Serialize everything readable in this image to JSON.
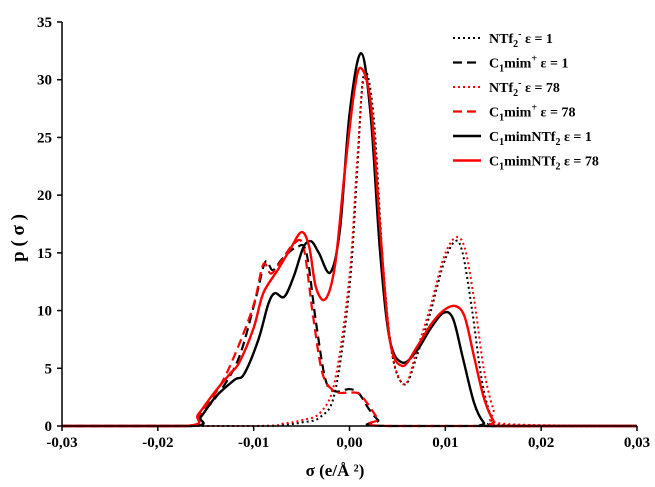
{
  "chart_data": {
    "type": "line",
    "title": "",
    "xlabel": "σ  (e/Å ²)",
    "ylabel": "p  ( σ )",
    "xlim": [
      -0.03,
      0.03
    ],
    "ylim": [
      0,
      35
    ],
    "x_ticks": [
      -0.03,
      -0.02,
      -0.01,
      0.0,
      0.01,
      0.02,
      0.03
    ],
    "x_tick_labels": [
      "-0,03",
      "-0,02",
      "-0,01",
      "0,00",
      "0,01",
      "0,02",
      "0,03"
    ],
    "y_ticks": [
      0,
      5,
      10,
      15,
      20,
      25,
      30,
      35
    ],
    "y_tick_labels": [
      "0",
      "5",
      "10",
      "15",
      "20",
      "25",
      "30",
      "35"
    ],
    "grid": false,
    "legend_position": "top-right",
    "series": [
      {
        "name": "NTf2⁻ ε = 1",
        "label_parts": {
          "base": "NTf",
          "sub": "2",
          "sup": "-",
          "suffix": "  ε = 1"
        },
        "color": "#000000",
        "dash": "dotted",
        "points": [
          [
            -0.03,
            0
          ],
          [
            -0.01,
            0
          ],
          [
            -0.007,
            0.1
          ],
          [
            -0.005,
            0.3
          ],
          [
            -0.003,
            0.8
          ],
          [
            -0.0015,
            3
          ],
          [
            0,
            12
          ],
          [
            0.0008,
            22
          ],
          [
            0.0015,
            30.5
          ],
          [
            0.0025,
            27
          ],
          [
            0.0035,
            14
          ],
          [
            0.0045,
            6
          ],
          [
            0.0058,
            3.6
          ],
          [
            0.007,
            6
          ],
          [
            0.0085,
            10
          ],
          [
            0.0098,
            14
          ],
          [
            0.011,
            16
          ],
          [
            0.0118,
            15
          ],
          [
            0.0128,
            10
          ],
          [
            0.0138,
            4
          ],
          [
            0.0148,
            0.8
          ],
          [
            0.0158,
            0.1
          ],
          [
            0.03,
            0
          ]
        ]
      },
      {
        "name": "C1mim⁺ ε = 1",
        "label_parts": {
          "base": "C",
          "sub": "1",
          "mid": "mim",
          "sup": "+",
          "suffix": "  ε = 1"
        },
        "color": "#000000",
        "dash": "dashed",
        "points": [
          [
            -0.03,
            0
          ],
          [
            -0.017,
            0
          ],
          [
            -0.0155,
            1
          ],
          [
            -0.0135,
            3
          ],
          [
            -0.0115,
            6
          ],
          [
            -0.0098,
            11
          ],
          [
            -0.0088,
            14.2
          ],
          [
            -0.008,
            13.5
          ],
          [
            -0.007,
            14.5
          ],
          [
            -0.0055,
            15.5
          ],
          [
            -0.0045,
            15
          ],
          [
            -0.0035,
            9
          ],
          [
            -0.0025,
            4
          ],
          [
            -0.0015,
            3
          ],
          [
            0,
            3.2
          ],
          [
            0.001,
            2.8
          ],
          [
            0.002,
            1.5
          ],
          [
            0.003,
            0.5
          ],
          [
            0.004,
            0
          ],
          [
            0.03,
            0
          ]
        ]
      },
      {
        "name": "NTf2⁻ ε = 78",
        "label_parts": {
          "base": "NTf",
          "sub": "2",
          "sup": "-",
          "suffix": "  ε = 78"
        },
        "color": "#ff0000",
        "dash": "dotted",
        "points": [
          [
            -0.03,
            0
          ],
          [
            -0.01,
            0
          ],
          [
            -0.007,
            0.2
          ],
          [
            -0.005,
            0.5
          ],
          [
            -0.003,
            1.2
          ],
          [
            -0.0015,
            4
          ],
          [
            0,
            13
          ],
          [
            0.0008,
            23
          ],
          [
            0.0015,
            30
          ],
          [
            0.0025,
            26
          ],
          [
            0.0035,
            13
          ],
          [
            0.0045,
            6
          ],
          [
            0.0058,
            3.6
          ],
          [
            0.007,
            6.5
          ],
          [
            0.0085,
            10.5
          ],
          [
            0.0098,
            14.5
          ],
          [
            0.011,
            16.3
          ],
          [
            0.012,
            15.5
          ],
          [
            0.013,
            11
          ],
          [
            0.014,
            5
          ],
          [
            0.015,
            1.5
          ],
          [
            0.016,
            0.2
          ],
          [
            0.03,
            0
          ]
        ]
      },
      {
        "name": "C1mim⁺ ε = 78",
        "label_parts": {
          "base": "C",
          "sub": "1",
          "mid": "mim",
          "sup": "+",
          "suffix": "  ε = 78"
        },
        "color": "#ff0000",
        "dash": "dashed",
        "points": [
          [
            -0.03,
            0
          ],
          [
            -0.017,
            0
          ],
          [
            -0.0155,
            1.2
          ],
          [
            -0.0135,
            3.5
          ],
          [
            -0.0118,
            6.5
          ],
          [
            -0.01,
            10.5
          ],
          [
            -0.009,
            14
          ],
          [
            -0.0082,
            13.2
          ],
          [
            -0.0072,
            14.2
          ],
          [
            -0.0058,
            15.8
          ],
          [
            -0.0048,
            15.5
          ],
          [
            -0.0038,
            9.5
          ],
          [
            -0.0028,
            4.5
          ],
          [
            -0.0015,
            3
          ],
          [
            0,
            2.9
          ],
          [
            0.001,
            2.8
          ],
          [
            0.002,
            1.8
          ],
          [
            0.003,
            0.6
          ],
          [
            0.004,
            0
          ],
          [
            0.03,
            0
          ]
        ]
      },
      {
        "name": "C1mimNTf2 ε = 1",
        "label_parts": {
          "base": "C",
          "sub": "1",
          "mid": "mimNTf",
          "sub2": "2",
          "suffix": "  ε = 1"
        },
        "color": "#000000",
        "dash": "solid",
        "points": [
          [
            -0.03,
            0
          ],
          [
            -0.0165,
            0
          ],
          [
            -0.0155,
            0.8
          ],
          [
            -0.014,
            2.5
          ],
          [
            -0.012,
            4
          ],
          [
            -0.011,
            4.5
          ],
          [
            -0.0095,
            7.5
          ],
          [
            -0.0085,
            10.5
          ],
          [
            -0.0078,
            11.5
          ],
          [
            -0.0068,
            11.2
          ],
          [
            -0.0058,
            13
          ],
          [
            -0.0048,
            15.5
          ],
          [
            -0.004,
            16
          ],
          [
            -0.0032,
            15
          ],
          [
            -0.002,
            13.3
          ],
          [
            -0.001,
            17
          ],
          [
            0,
            27
          ],
          [
            0.0012,
            32.3
          ],
          [
            0.0022,
            27
          ],
          [
            0.0032,
            15
          ],
          [
            0.0042,
            7.5
          ],
          [
            0.0055,
            5.5
          ],
          [
            0.007,
            6.5
          ],
          [
            0.0085,
            8.5
          ],
          [
            0.0098,
            9.8
          ],
          [
            0.0108,
            9.3
          ],
          [
            0.0118,
            6
          ],
          [
            0.013,
            2
          ],
          [
            0.014,
            0.3
          ],
          [
            0.015,
            0
          ],
          [
            0.03,
            0
          ]
        ]
      },
      {
        "name": "C1mimNTf2 ε = 78",
        "label_parts": {
          "base": "C",
          "sub": "1",
          "mid": "mimNTf",
          "sub2": "2",
          "suffix": "  ε = 78"
        },
        "color": "#ff0000",
        "dash": "solid",
        "points": [
          [
            -0.03,
            0
          ],
          [
            -0.017,
            0
          ],
          [
            -0.0158,
            1
          ],
          [
            -0.0142,
            2.8
          ],
          [
            -0.0125,
            4.5
          ],
          [
            -0.0115,
            5.5
          ],
          [
            -0.01,
            8.5
          ],
          [
            -0.009,
            11.5
          ],
          [
            -0.0075,
            13.5
          ],
          [
            -0.0062,
            15.3
          ],
          [
            -0.005,
            16.8
          ],
          [
            -0.0042,
            15.5
          ],
          [
            -0.0035,
            12
          ],
          [
            -0.0025,
            11
          ],
          [
            -0.0015,
            14
          ],
          [
            -0.0005,
            22
          ],
          [
            0.0005,
            29
          ],
          [
            0.0012,
            31
          ],
          [
            0.0022,
            28
          ],
          [
            0.0032,
            17
          ],
          [
            0.0042,
            7.5
          ],
          [
            0.0055,
            5.2
          ],
          [
            0.007,
            6.8
          ],
          [
            0.0085,
            8.8
          ],
          [
            0.0098,
            10
          ],
          [
            0.011,
            10.4
          ],
          [
            0.012,
            9.5
          ],
          [
            0.013,
            6
          ],
          [
            0.014,
            2.5
          ],
          [
            0.015,
            0.5
          ],
          [
            0.016,
            0
          ],
          [
            0.03,
            0
          ]
        ]
      }
    ]
  }
}
